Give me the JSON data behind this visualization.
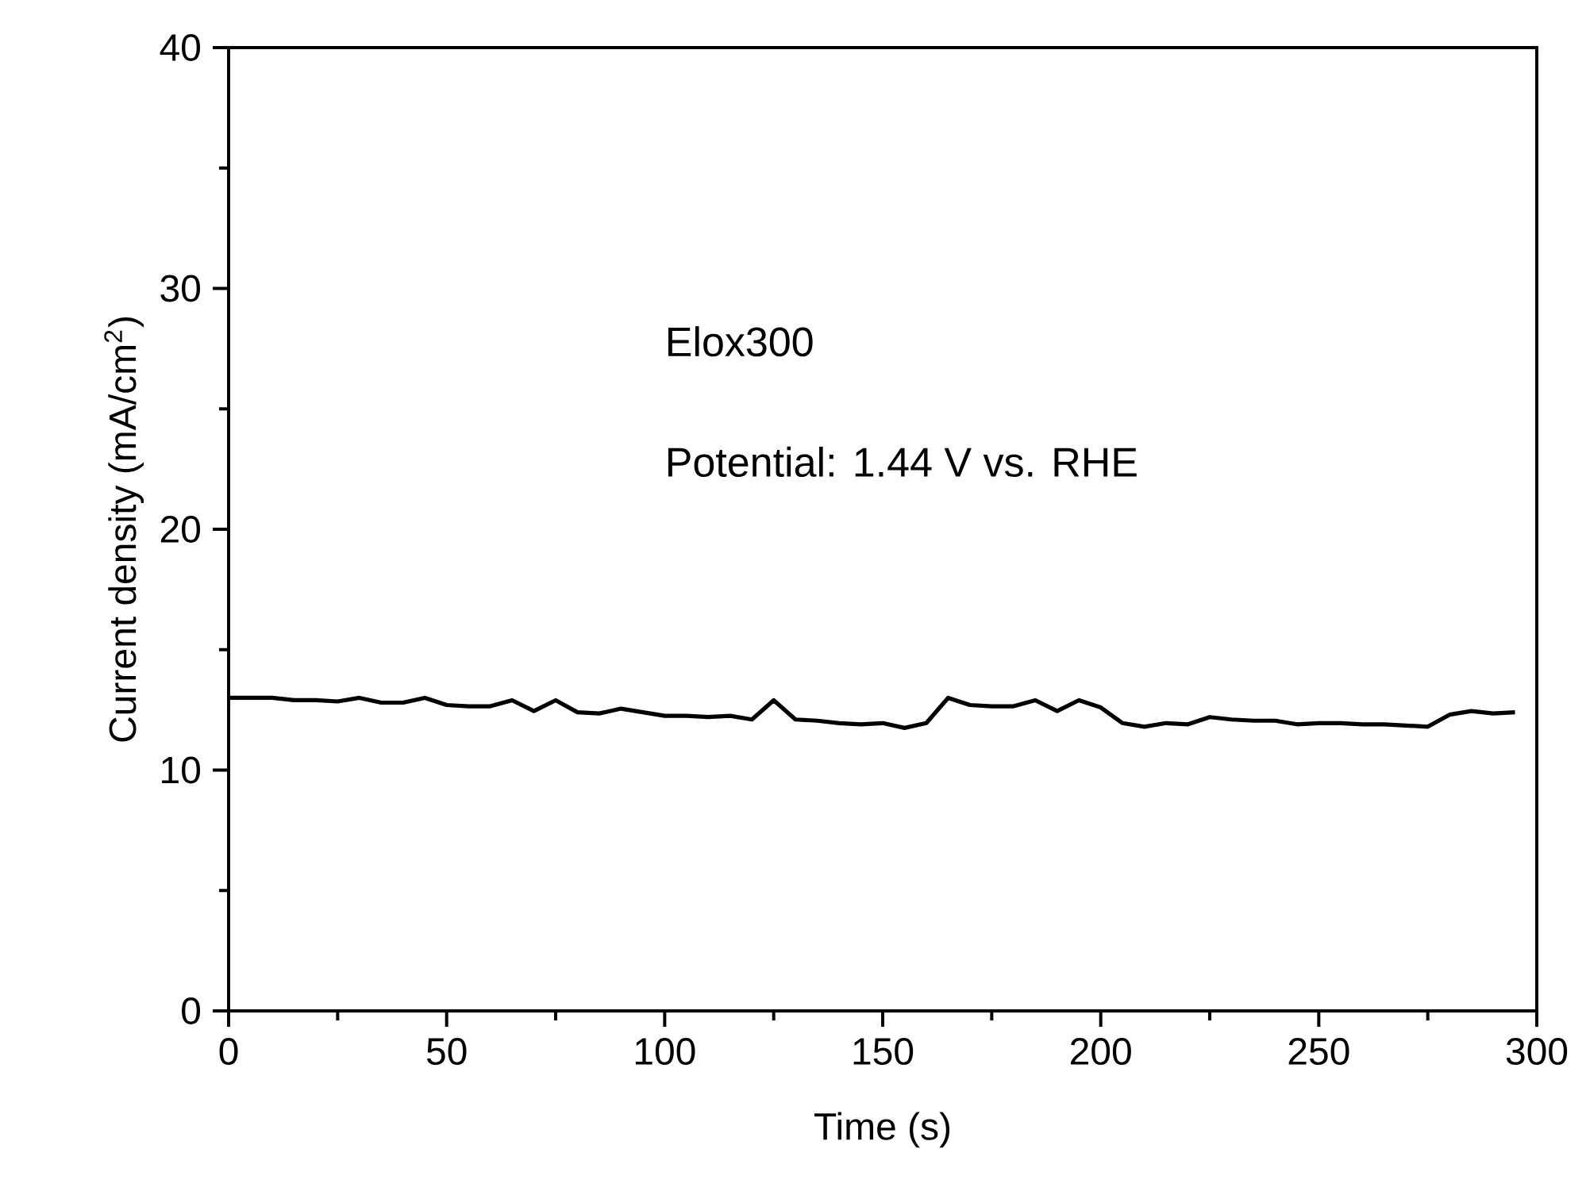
{
  "chart_data": {
    "type": "line",
    "xlabel": "Time (s)",
    "ylabel": "Current density (mA/cm$^{2}$)",
    "annotations": [
      "Elox300",
      "Potential: 1.44 V vs. RHE"
    ],
    "xlim": [
      0,
      300
    ],
    "ylim": [
      0,
      40
    ],
    "xticks": [
      0,
      50,
      100,
      150,
      200,
      250,
      300
    ],
    "yticks": [
      0,
      10,
      20,
      30,
      40
    ],
    "marker": "none",
    "line_style": "solid",
    "series": [
      {
        "color": "#000000",
        "x": [
          0,
          5,
          10,
          15,
          20,
          25,
          30,
          35,
          40,
          45,
          50,
          55,
          60,
          65,
          70,
          75,
          80,
          85,
          90,
          95,
          100,
          105,
          110,
          115,
          120,
          125,
          130,
          135,
          140,
          145,
          150,
          155,
          160,
          165,
          170,
          175,
          180,
          185,
          190,
          195,
          200,
          205,
          210,
          215,
          220,
          225,
          230,
          235,
          240,
          245,
          250,
          255,
          260,
          265,
          270,
          275,
          280,
          285,
          290,
          295
        ],
        "values": [
          13.0,
          13.0,
          13.0,
          12.9,
          12.9,
          12.85,
          13.0,
          12.8,
          12.8,
          13.0,
          12.7,
          12.65,
          12.65,
          12.9,
          12.45,
          12.9,
          12.4,
          12.35,
          12.55,
          12.4,
          12.25,
          12.25,
          12.2,
          12.25,
          12.1,
          12.9,
          12.1,
          12.05,
          11.95,
          11.9,
          11.95,
          11.75,
          11.95,
          13.0,
          12.7,
          12.65,
          12.65,
          12.9,
          12.45,
          12.9,
          12.6,
          11.95,
          11.8,
          11.95,
          11.9,
          12.2,
          12.1,
          12.05,
          12.05,
          11.9,
          11.95,
          11.95,
          11.9,
          11.9,
          11.85,
          11.8,
          12.3,
          12.45,
          12.35,
          12.4
        ]
      }
    ]
  }
}
